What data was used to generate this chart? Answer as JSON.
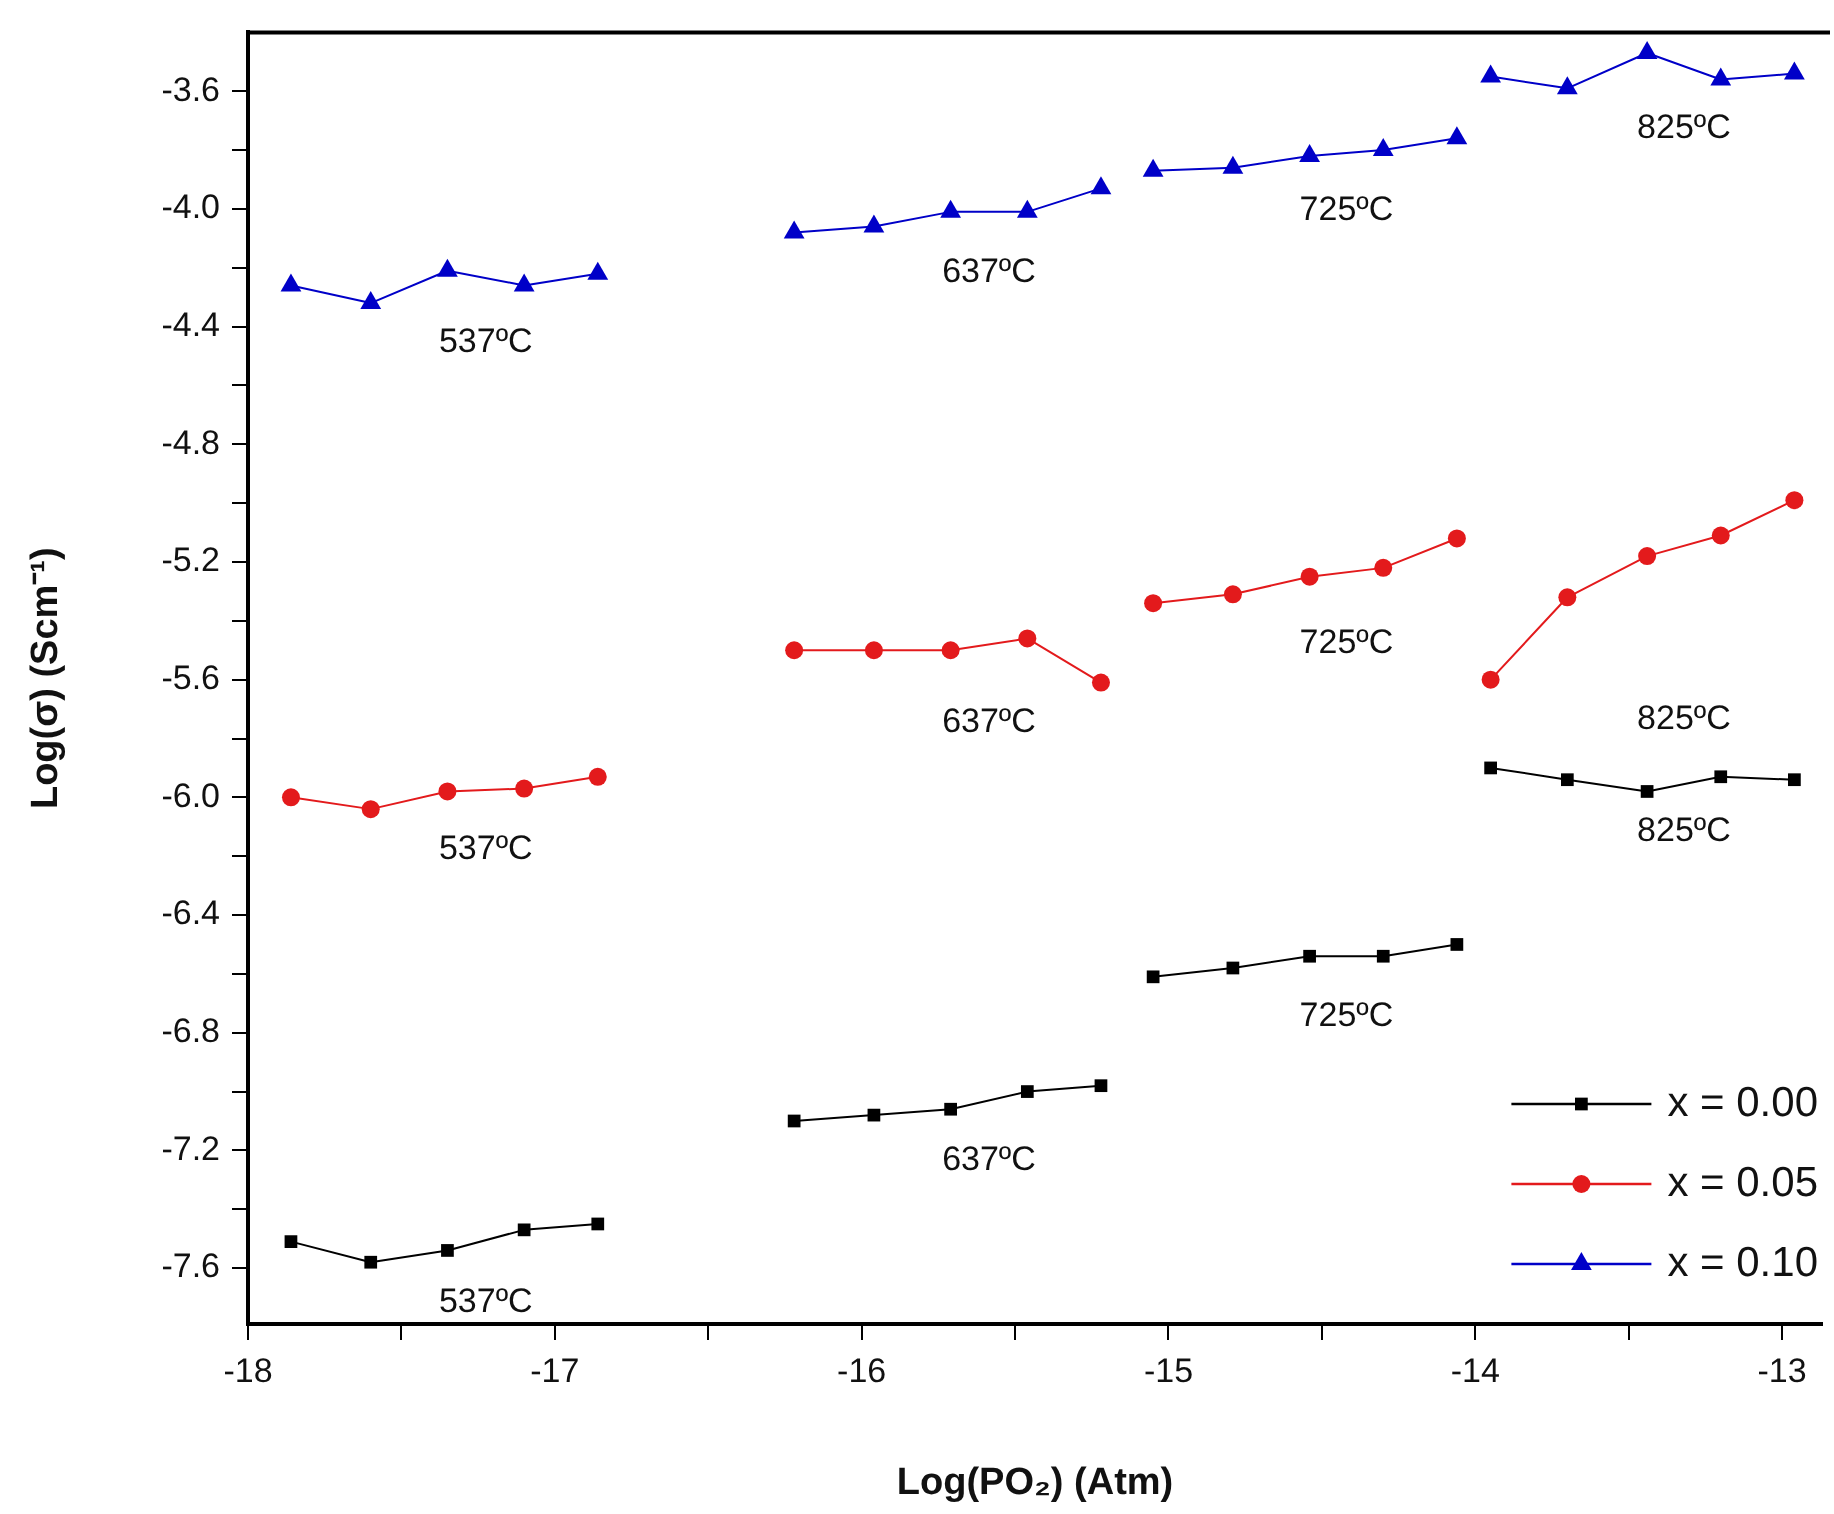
{
  "chart_data": {
    "type": "line",
    "xlabel": "Log(PO₂) (Atm)",
    "ylabel": "Log(σ) (Scm⁻¹)",
    "xlim": [
      -18,
      -12.87
    ],
    "ylim": [
      -7.79,
      -3.4
    ],
    "xticks": [
      -18,
      {
        "value": -17.5,
        "label": null
      },
      -17,
      {
        "value": -16.5,
        "label": null
      },
      -16,
      {
        "value": -15.5,
        "label": null
      },
      -15,
      {
        "value": -14.5,
        "label": null
      },
      -14,
      {
        "value": -13.5,
        "label": null
      },
      -13
    ],
    "yticks": [
      {
        "value": -7.6,
        "label": "-7.6"
      },
      {
        "value": -7.4,
        "label": null
      },
      {
        "value": -7.2,
        "label": "-7.2"
      },
      {
        "value": -7,
        "label": null
      },
      {
        "value": -6.8,
        "label": "-6.8"
      },
      {
        "value": -6.6,
        "label": null
      },
      {
        "value": -6.4,
        "label": "-6.4"
      },
      {
        "value": -6.2,
        "label": null
      },
      {
        "value": -6,
        "label": "-6.0"
      },
      {
        "value": -5.8,
        "label": null
      },
      {
        "value": -5.6,
        "label": "-5.6"
      },
      {
        "value": -5.4,
        "label": null
      },
      {
        "value": -5.2,
        "label": "-5.2"
      },
      {
        "value": -5,
        "label": null
      },
      {
        "value": -4.8,
        "label": "-4.8"
      },
      {
        "value": -4.6,
        "label": null
      },
      {
        "value": -4.4,
        "label": "-4.4"
      },
      {
        "value": -4.2,
        "label": null
      },
      {
        "value": -4,
        "label": "-4.0"
      },
      {
        "value": -3.8,
        "label": null
      },
      {
        "value": -3.6,
        "label": "-3.6"
      }
    ],
    "grid": false,
    "legend": "bottom right",
    "line_style": "solid",
    "series": [
      {
        "name": "x = 0.00",
        "color": "#000000",
        "marker": "square",
        "x": [
          -17.86,
          -17.6,
          -17.35,
          -17.1,
          -16.86
        ],
        "values": [
          -7.51,
          -7.58,
          -7.54,
          -7.47,
          -7.45
        ]
      },
      {
        "color": "#000000",
        "marker": "square",
        "x": [
          -16.22,
          -15.96,
          -15.71,
          -15.46,
          -15.22
        ],
        "values": [
          -7.1,
          -7.08,
          -7.06,
          -7.0,
          -6.98
        ]
      },
      {
        "color": "#000000",
        "marker": "square",
        "x": [
          -15.05,
          -14.79,
          -14.54,
          -14.3,
          -14.06
        ],
        "values": [
          -6.61,
          -6.58,
          -6.54,
          -6.54,
          -6.5
        ]
      },
      {
        "color": "#000000",
        "marker": "square",
        "x": [
          -13.95,
          -13.7,
          -13.44,
          -13.2,
          -12.96
        ],
        "values": [
          -5.9,
          -5.94,
          -5.98,
          -5.93,
          -5.94
        ]
      },
      {
        "name": "x = 0.05",
        "color": "#e31a1c",
        "marker": "circle",
        "x": [
          -17.86,
          -17.6,
          -17.35,
          -17.1,
          -16.86
        ],
        "values": [
          -6.0,
          -6.04,
          -5.98,
          -5.97,
          -5.93
        ]
      },
      {
        "color": "#e31a1c",
        "marker": "circle",
        "x": [
          -16.22,
          -15.96,
          -15.71,
          -15.46,
          -15.22
        ],
        "values": [
          -5.5,
          -5.5,
          -5.5,
          -5.46,
          -5.61
        ]
      },
      {
        "color": "#e31a1c",
        "marker": "circle",
        "x": [
          -15.05,
          -14.79,
          -14.54,
          -14.3,
          -14.06
        ],
        "values": [
          -5.34,
          -5.31,
          -5.25,
          -5.22,
          -5.12
        ]
      },
      {
        "color": "#e31a1c",
        "marker": "circle",
        "x": [
          -13.95,
          -13.7,
          -13.44,
          -13.2,
          -12.96
        ],
        "values": [
          -5.6,
          -5.32,
          -5.18,
          -5.11,
          -4.99
        ]
      },
      {
        "name": "x = 0.10",
        "color": "#0000c8",
        "marker": "triangle",
        "x": [
          -17.86,
          -17.6,
          -17.35,
          -17.1,
          -16.86
        ],
        "values": [
          -4.26,
          -4.32,
          -4.21,
          -4.26,
          -4.22
        ]
      },
      {
        "color": "#0000c8",
        "marker": "triangle",
        "x": [
          -16.22,
          -15.96,
          -15.71,
          -15.46,
          -15.22
        ],
        "values": [
          -4.08,
          -4.06,
          -4.01,
          -4.01,
          -3.93
        ]
      },
      {
        "color": "#0000c8",
        "marker": "triangle",
        "x": [
          -15.05,
          -14.79,
          -14.54,
          -14.3,
          -14.06
        ],
        "values": [
          -3.87,
          -3.86,
          -3.82,
          -3.8,
          -3.76
        ]
      },
      {
        "color": "#0000c8",
        "marker": "triangle",
        "x": [
          -13.95,
          -13.7,
          -13.44,
          -13.2,
          -12.96
        ],
        "values": [
          -3.55,
          -3.59,
          -3.47,
          -3.56,
          -3.54
        ]
      }
    ],
    "annotations": [
      "537ºC",
      "637ºC",
      "725ºC",
      "825ºC",
      "537ºC",
      "637ºC",
      "725ºC",
      "825ºC",
      "537ºC",
      "637ºC",
      "725ºC",
      "825ºC"
    ]
  }
}
